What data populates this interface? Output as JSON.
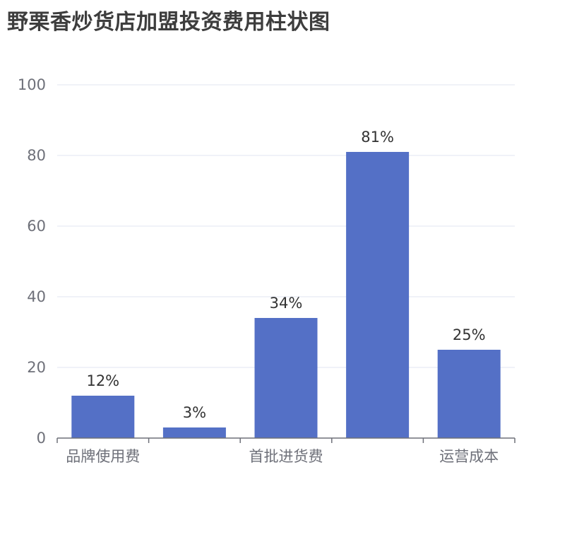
{
  "title": "野栗香炒货店加盟投资费用柱状图",
  "chart_data": {
    "type": "bar",
    "title": "野栗香炒货店加盟投资费用柱状图",
    "xlabel": "",
    "ylabel": "",
    "ylim": [
      0,
      100
    ],
    "yticks": [
      0,
      20,
      40,
      60,
      80,
      100
    ],
    "categories": [
      "品牌使用费",
      "",
      "首批进货费",
      "",
      "运营成本"
    ],
    "values": [
      12,
      3,
      34,
      81,
      25
    ],
    "data_labels": [
      "12%",
      "3%",
      "34%",
      "81%",
      "25%"
    ],
    "grid": true,
    "legend": "none",
    "colors": {
      "bar": "#5470c6",
      "grid": "#e0e6f1",
      "axis": "#6e7079",
      "label": "#333333",
      "title": "#3d3d3d"
    }
  }
}
